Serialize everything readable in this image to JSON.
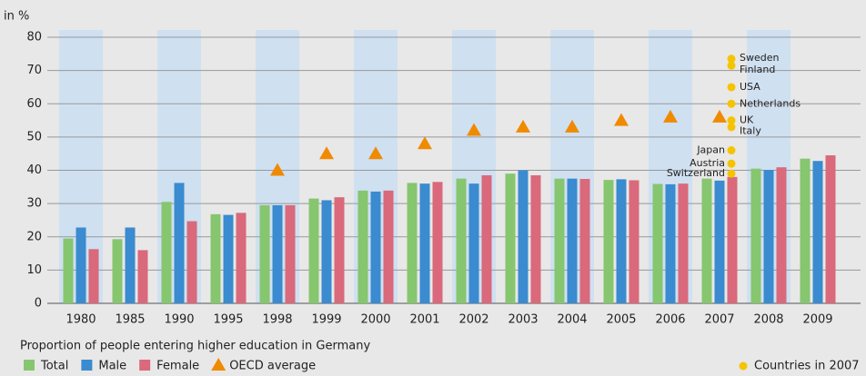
{
  "chart_data": {
    "type": "bar",
    "y_label": "in %",
    "caption": "Proportion of people entering higher education in Germany",
    "categories": [
      "1980",
      "1985",
      "1990",
      "1995",
      "1998",
      "1999",
      "2000",
      "2001",
      "2002",
      "2003",
      "2004",
      "2005",
      "2006",
      "2007",
      "2008",
      "2009"
    ],
    "ylim": [
      0,
      80
    ],
    "yticks": [
      0,
      10,
      20,
      30,
      40,
      50,
      60,
      70,
      80
    ],
    "grid": true,
    "series": [
      {
        "name": "Total",
        "color": "#86c66f",
        "values": [
          19.5,
          19.3,
          30.5,
          26.8,
          29.5,
          31.5,
          33.9,
          36.2,
          37.5,
          39,
          37.5,
          37.1,
          35.9,
          37.5,
          40.5,
          43.5
        ]
      },
      {
        "name": "Male",
        "color": "#3a8bcf",
        "values": [
          22.8,
          22.8,
          36.2,
          26.6,
          29.5,
          31,
          33.6,
          36,
          36,
          40,
          37.5,
          37.3,
          35.8,
          36.9,
          40.1,
          42.8
        ]
      },
      {
        "name": "Female",
        "color": "#d9697b",
        "values": [
          16.3,
          16,
          24.7,
          27.2,
          29.5,
          31.9,
          33.9,
          36.5,
          38.5,
          38.5,
          37.4,
          37,
          36,
          38,
          40.9,
          44.5
        ]
      },
      {
        "name": "OECD average",
        "type": "triangle",
        "color": "#f08a00",
        "values": [
          null,
          null,
          null,
          null,
          40,
          45,
          45,
          48,
          52,
          53,
          53,
          55,
          56,
          56,
          null,
          null
        ]
      }
    ],
    "countries": {
      "name": "Countries in 2007",
      "color": "#f5c400",
      "labels": [
        "Sweden",
        "Finland",
        "USA",
        "Netherlands",
        "UK",
        "Italy",
        "Japan",
        "Austria",
        "Switzerland"
      ],
      "values": [
        73.5,
        71.5,
        65,
        60,
        55,
        53,
        46,
        42,
        39
      ]
    }
  }
}
